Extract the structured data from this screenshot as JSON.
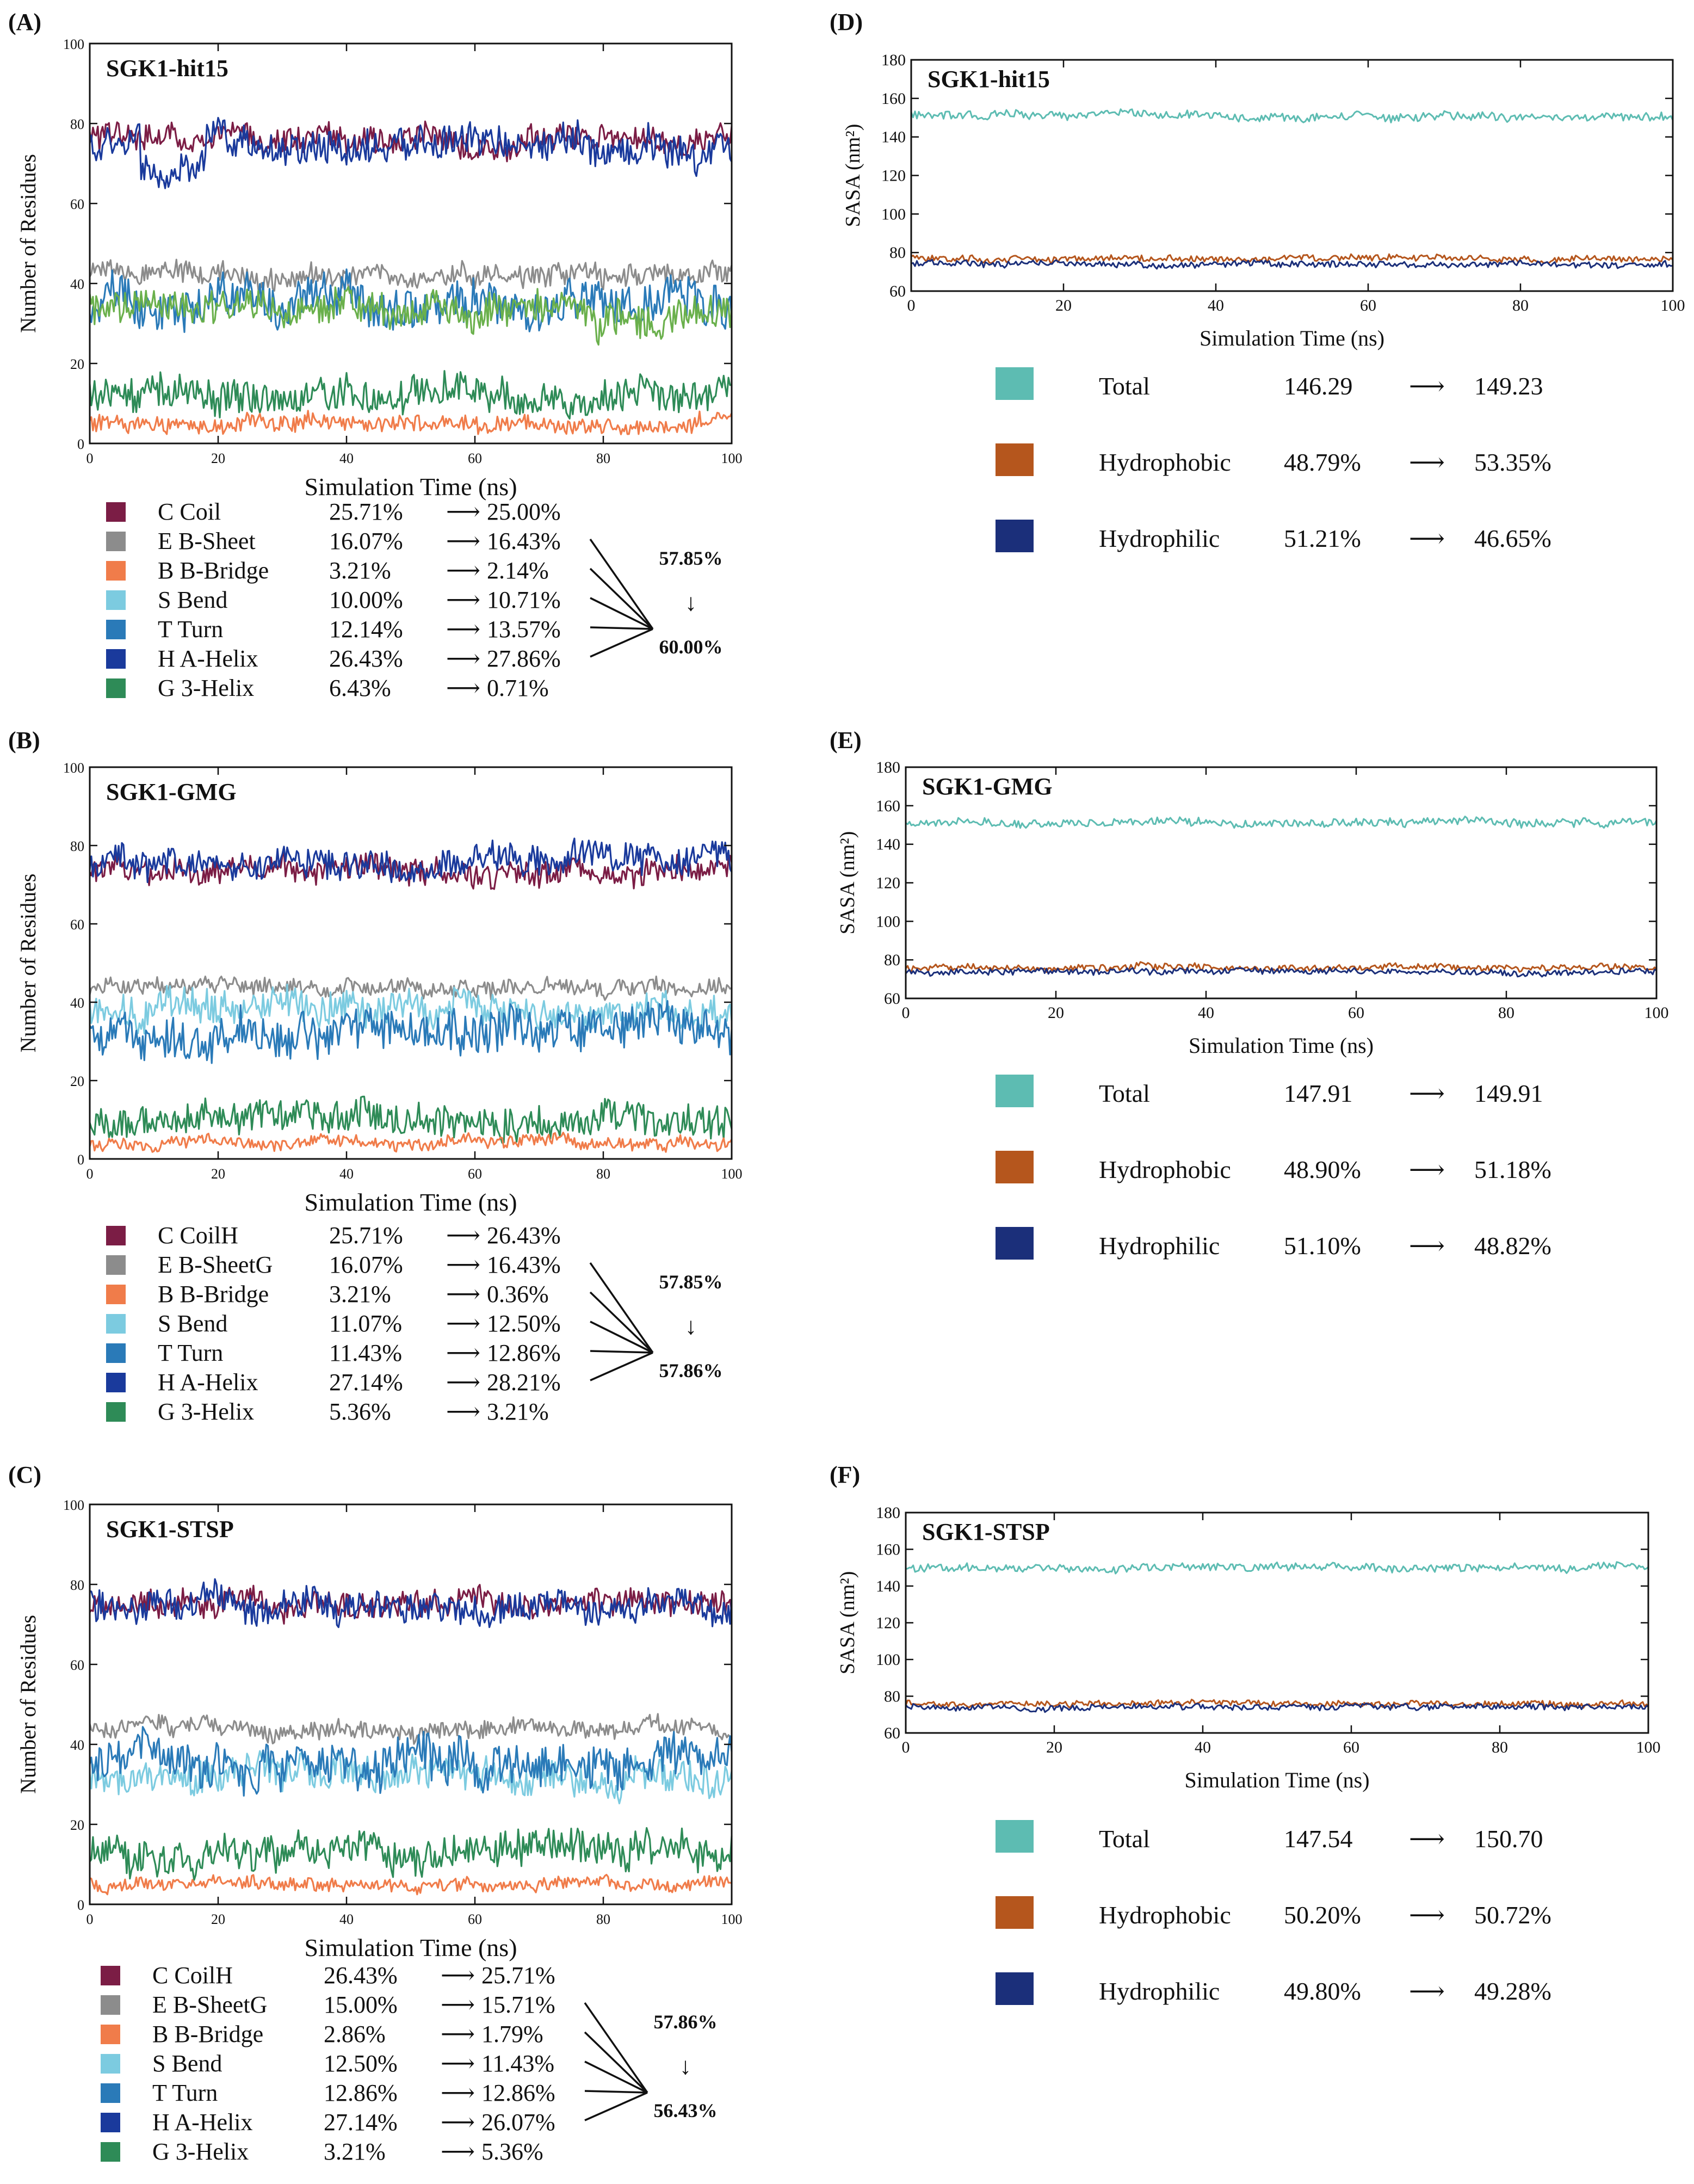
{
  "colors": {
    "coil": "#7b1d45",
    "sheet": "#8c8c8c",
    "bridge": "#f07c4a",
    "bend": "#7ccbe0",
    "turn": "#2a7ab8",
    "helix": "#1a3a9c",
    "g3helix": "#2e8b57",
    "sheet_green": "#6ab04c",
    "total": "#5dbcb2",
    "hydrophobic": "#b5561d",
    "hydrophilic": "#1b2f7a"
  },
  "chart_data": [
    {
      "panel_label": "(A)",
      "type": "line",
      "title": "SGK1-hit15",
      "xlabel": "Simulation Time (ns)",
      "ylabel": "Number of Residues",
      "xlim": [
        0,
        100
      ],
      "ylim": [
        0,
        100
      ],
      "x_ticks": [
        "0",
        "20",
        "40",
        "60",
        "80",
        "100"
      ],
      "y_ticks": [
        "0",
        "20",
        "40",
        "60",
        "80",
        "100"
      ],
      "series": [
        {
          "name": "Coil",
          "color_key": "coil",
          "mean": 76,
          "noise": 3
        },
        {
          "name": "A-Helix",
          "color_key": "helix",
          "mean": 74,
          "noise": 4,
          "dip": [
            8,
            18,
            7
          ]
        },
        {
          "name": "B-Sheet",
          "color_key": "sheet",
          "mean": 42,
          "noise": 2.5
        },
        {
          "name": "Turn",
          "color_key": "turn",
          "mean": 35,
          "noise": 5
        },
        {
          "name": "Bend",
          "color_key": "sheet_green",
          "mean": 33,
          "noise": 4
        },
        {
          "name": "3-Helix",
          "color_key": "g3helix",
          "mean": 12,
          "noise": 4
        },
        {
          "name": "B-Bridge",
          "color_key": "bridge",
          "mean": 5,
          "noise": 2
        }
      ],
      "legend": [
        {
          "key": "coil",
          "label": "C Coil",
          "from": "25.71%",
          "to": "25.00%",
          "arrow": "⟶"
        },
        {
          "key": "sheet",
          "label": "E B-Sheet",
          "from": "16.07%",
          "to": "16.43%",
          "arrow": "⟶"
        },
        {
          "key": "bridge",
          "label": "B B-Bridge",
          "from": "3.21%",
          "to": "2.14%",
          "arrow": "⟶"
        },
        {
          "key": "bend",
          "label": "S Bend",
          "from": "10.00%",
          "to": "10.71%",
          "arrow": "⟶"
        },
        {
          "key": "turn",
          "label": "T Turn",
          "from": "12.14%",
          "to": "13.57%",
          "arrow": "⟶"
        },
        {
          "key": "helix",
          "label": "H A-Helix",
          "from": "26.43%",
          "to": "27.86%",
          "arrow": "⟶"
        },
        {
          "key": "g3helix",
          "label": "G 3-Helix",
          "from": "6.43%",
          "to": "0.71%",
          "arrow": "⟶"
        }
      ],
      "summary": {
        "from": "57.85%",
        "to": "60.00%",
        "arrow": "↓"
      }
    },
    {
      "panel_label": "(B)",
      "type": "line",
      "title": "SGK1-GMG",
      "xlabel": "Simulation Time (ns)",
      "ylabel": "Number of Residues",
      "xlim": [
        0,
        100
      ],
      "ylim": [
        0,
        100
      ],
      "x_ticks": [
        "0",
        "20",
        "40",
        "60",
        "80",
        "100"
      ],
      "y_ticks": [
        "0",
        "20",
        "40",
        "60",
        "80",
        "100"
      ],
      "series": [
        {
          "name": "Coil",
          "color_key": "coil",
          "mean": 74,
          "noise": 3
        },
        {
          "name": "A-Helix",
          "color_key": "helix",
          "mean": 76,
          "noise": 3.5
        },
        {
          "name": "B-Sheet",
          "color_key": "sheet",
          "mean": 44,
          "noise": 2
        },
        {
          "name": "Bend",
          "color_key": "bend",
          "mean": 38,
          "noise": 4
        },
        {
          "name": "Turn",
          "color_key": "turn",
          "mean": 33,
          "noise": 5
        },
        {
          "name": "3-Helix",
          "color_key": "g3helix",
          "mean": 10,
          "noise": 4
        },
        {
          "name": "B-Bridge",
          "color_key": "bridge",
          "mean": 4,
          "noise": 1.5
        }
      ],
      "legend": [
        {
          "key": "coil",
          "label": "C CoilH",
          "from": "25.71%",
          "to": "26.43%",
          "arrow": "⟶"
        },
        {
          "key": "sheet",
          "label": "E B-SheetG",
          "from": "16.07%",
          "to": "16.43%",
          "arrow": "⟶"
        },
        {
          "key": "bridge",
          "label": "B B-Bridge",
          "from": "3.21%",
          "to": "0.36%",
          "arrow": "⟶"
        },
        {
          "key": "bend",
          "label": "S Bend",
          "from": "11.07%",
          "to": "12.50%",
          "arrow": "⟶"
        },
        {
          "key": "turn",
          "label": "T Turn",
          "from": "11.43%",
          "to": "12.86%",
          "arrow": "⟶"
        },
        {
          "key": "helix",
          "label": "H A-Helix",
          "from": "27.14%",
          "to": "28.21%",
          "arrow": "⟶"
        },
        {
          "key": "g3helix",
          "label": "G 3-Helix",
          "from": "5.36%",
          "to": "3.21%",
          "arrow": "⟶"
        }
      ],
      "summary": {
        "from": "57.85%",
        "to": "57.86%",
        "arrow": "↓"
      }
    },
    {
      "panel_label": "(C)",
      "type": "line",
      "title": "SGK1-STSP",
      "xlabel": "Simulation Time (ns)",
      "ylabel": "Number of Residues",
      "xlim": [
        0,
        100
      ],
      "ylim": [
        0,
        100
      ],
      "x_ticks": [
        "0",
        "20",
        "40",
        "60",
        "80",
        "100"
      ],
      "y_ticks": [
        "0",
        "20",
        "40",
        "60",
        "80",
        "100"
      ],
      "series": [
        {
          "name": "Coil",
          "color_key": "coil",
          "mean": 75,
          "noise": 3
        },
        {
          "name": "A-Helix",
          "color_key": "helix",
          "mean": 75,
          "noise": 3.5
        },
        {
          "name": "B-Sheet",
          "color_key": "sheet",
          "mean": 44,
          "noise": 2
        },
        {
          "name": "Bend",
          "color_key": "bend",
          "mean": 32,
          "noise": 4
        },
        {
          "name": "Turn",
          "color_key": "turn",
          "mean": 36,
          "noise": 5
        },
        {
          "name": "3-Helix",
          "color_key": "g3helix",
          "mean": 13,
          "noise": 4
        },
        {
          "name": "B-Bridge",
          "color_key": "bridge",
          "mean": 5,
          "noise": 1.5
        }
      ],
      "legend": [
        {
          "key": "coil",
          "label": "C CoilH",
          "from": "26.43%",
          "to": "25.71%",
          "arrow": "⟶"
        },
        {
          "key": "sheet",
          "label": "E B-SheetG",
          "from": "15.00%",
          "to": "15.71%",
          "arrow": "⟶"
        },
        {
          "key": "bridge",
          "label": "B B-Bridge",
          "from": "2.86%",
          "to": "1.79%",
          "arrow": "⟶"
        },
        {
          "key": "bend",
          "label": "S Bend",
          "from": "12.50%",
          "to": "11.43%",
          "arrow": "⟶"
        },
        {
          "key": "turn",
          "label": "T Turn",
          "from": "12.86%",
          "to": "12.86%",
          "arrow": "⟶"
        },
        {
          "key": "helix",
          "label": "H A-Helix",
          "from": "27.14%",
          "to": "26.07%",
          "arrow": "⟶"
        },
        {
          "key": "g3helix",
          "label": "G 3-Helix",
          "from": "3.21%",
          "to": "5.36%",
          "arrow": "⟶"
        }
      ],
      "summary": {
        "from": "57.86%",
        "to": "56.43%",
        "arrow": "↓"
      }
    },
    {
      "panel_label": "(D)",
      "type": "line",
      "title": "SGK1-hit15",
      "xlabel": "Simulation Time (ns)",
      "ylabel": "SASA (nm²)",
      "xlim": [
        0,
        100
      ],
      "ylim": [
        60,
        180
      ],
      "x_ticks": [
        "0",
        "20",
        "40",
        "60",
        "80",
        "100"
      ],
      "y_ticks": [
        "60",
        "80",
        "100",
        "120",
        "140",
        "160",
        "180"
      ],
      "series": [
        {
          "name": "Total",
          "color_key": "total",
          "mean": 151,
          "noise": 2
        },
        {
          "name": "Hydrophobic",
          "color_key": "hydrophobic",
          "mean": 77,
          "noise": 1.5
        },
        {
          "name": "Hydrophilic",
          "color_key": "hydrophilic",
          "mean": 74,
          "noise": 1.5
        }
      ],
      "legend": [
        {
          "key": "total",
          "label": "Total",
          "from": "146.29",
          "to": "149.23",
          "arrow": "⟶"
        },
        {
          "key": "hydrophobic",
          "label": "Hydrophobic",
          "from": "48.79%",
          "to": "53.35%",
          "arrow": "⟶"
        },
        {
          "key": "hydrophilic",
          "label": "Hydrophilic",
          "from": "51.21%",
          "to": "46.65%",
          "arrow": "⟶"
        }
      ]
    },
    {
      "panel_label": "(E)",
      "type": "line",
      "title": "SGK1-GMG",
      "xlabel": "Simulation Time (ns)",
      "ylabel": "SASA (nm²)",
      "xlim": [
        0,
        100
      ],
      "ylim": [
        60,
        180
      ],
      "x_ticks": [
        "0",
        "20",
        "40",
        "60",
        "80",
        "100"
      ],
      "y_ticks": [
        "60",
        "80",
        "100",
        "120",
        "140",
        "160",
        "180"
      ],
      "series": [
        {
          "name": "Total",
          "color_key": "total",
          "mean": 151,
          "noise": 2
        },
        {
          "name": "Hydrophobic",
          "color_key": "hydrophobic",
          "mean": 76,
          "noise": 1.5
        },
        {
          "name": "Hydrophilic",
          "color_key": "hydrophilic",
          "mean": 74,
          "noise": 1.5
        }
      ],
      "legend": [
        {
          "key": "total",
          "label": "Total",
          "from": "147.91",
          "to": "149.91",
          "arrow": "⟶"
        },
        {
          "key": "hydrophobic",
          "label": "Hydrophobic",
          "from": "48.90%",
          "to": "51.18%",
          "arrow": "⟶"
        },
        {
          "key": "hydrophilic",
          "label": "Hydrophilic",
          "from": "51.10%",
          "to": "48.82%",
          "arrow": "⟶"
        }
      ]
    },
    {
      "panel_label": "(F)",
      "type": "line",
      "title": "SGK1-STSP",
      "xlabel": "Simulation Time (ns)",
      "ylabel": "SASA (nm²)",
      "xlim": [
        0,
        100
      ],
      "ylim": [
        60,
        180
      ],
      "x_ticks": [
        "0",
        "20",
        "40",
        "60",
        "80",
        "100"
      ],
      "y_ticks": [
        "60",
        "80",
        "100",
        "120",
        "140",
        "160",
        "180"
      ],
      "series": [
        {
          "name": "Total",
          "color_key": "total",
          "mean": 150,
          "noise": 2
        },
        {
          "name": "Hydrophobic",
          "color_key": "hydrophobic",
          "mean": 76,
          "noise": 1.5
        },
        {
          "name": "Hydrophilic",
          "color_key": "hydrophilic",
          "mean": 74,
          "noise": 1.5
        }
      ],
      "legend": [
        {
          "key": "total",
          "label": "Total",
          "from": "147.54",
          "to": "150.70",
          "arrow": "⟶"
        },
        {
          "key": "hydrophobic",
          "label": "Hydrophobic",
          "from": "50.20%",
          "to": "50.72%",
          "arrow": "⟶"
        },
        {
          "key": "hydrophilic",
          "label": "Hydrophilic",
          "from": "49.80%",
          "to": "49.28%",
          "arrow": "⟶"
        }
      ]
    }
  ]
}
